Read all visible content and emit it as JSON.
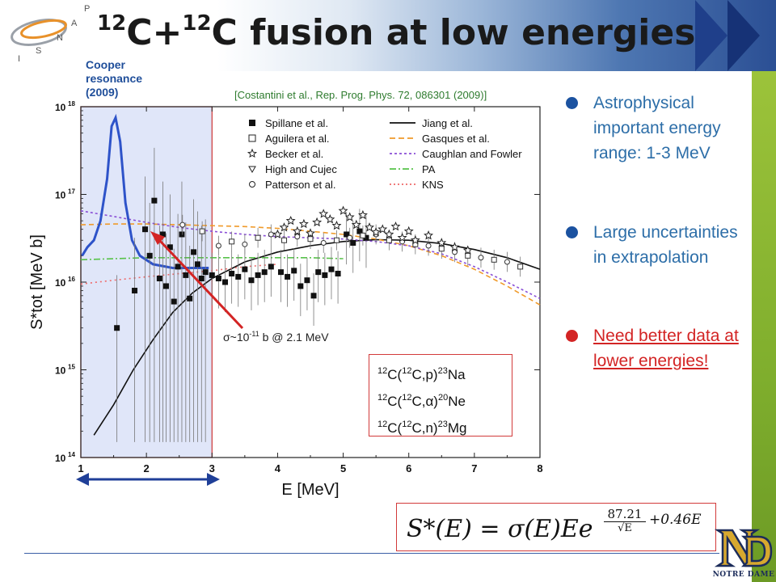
{
  "slide": {
    "title_parts": [
      "12",
      "C+",
      "12",
      "C fusion at low energies"
    ],
    "cooper_label": "Cooper resonance (2009)",
    "citation": "[Costantini et al., Rep. Prog. Phys. 72, 086301 (2009)]",
    "sigma_note": {
      "base": "σ~10",
      "exp": "-11",
      "rest": " b @ 2.1 MeV"
    },
    "isnap_letters": [
      "I",
      "S",
      "N",
      "A",
      "P"
    ],
    "nd_caption": "NOTRE DAME",
    "colors": {
      "banner_dark": "#1f3f8a",
      "accent_green": "#9cc33a",
      "bullet_blue": "#2d6ea8",
      "highlight_red": "#d32424"
    }
  },
  "bullets": [
    {
      "text": "Astrophysical important energy range: 1-3 MeV"
    },
    {
      "text": "Large uncertainties in extrapolation"
    },
    {
      "text": "Need better data at lower energies!"
    }
  ],
  "reactions": [
    {
      "a": "12",
      "b": "C(",
      "c": "12",
      "d": "C,p)",
      "e": "23",
      "f": "Na"
    },
    {
      "a": "12",
      "b": "C(",
      "c": "12",
      "d": "C,α)",
      "e": "20",
      "f": "Ne"
    },
    {
      "a": "12",
      "b": "C(",
      "c": "12",
      "d": "C,n)",
      "e": "23",
      "f": "Mg"
    }
  ],
  "formula": {
    "lhs": "S*(E) = σ(E)Ee",
    "frac_num": "87.21",
    "frac_den": "√E",
    "tail": "+0.46E"
  },
  "chart_data": {
    "type": "scatter",
    "xlabel": "E [MeV]",
    "ylabel": "S*tot [MeV b]",
    "xlim": [
      1,
      8
    ],
    "ylim": [
      100000000000000.0,
      1e+18
    ],
    "log_y": true,
    "x_ticks": [
      "1",
      "2",
      "3",
      "4",
      "5",
      "6",
      "7",
      "8"
    ],
    "y_ticks": [
      {
        "v": 1e+18,
        "label": "10",
        "exp": "18"
      },
      {
        "v": 1e+17,
        "label": "10",
        "exp": "17"
      },
      {
        "v": 1e+16,
        "label": "10",
        "exp": "16"
      },
      {
        "v": 1000000000000000.0,
        "label": "10",
        "exp": "15"
      },
      {
        "v": 100000000000000.0,
        "label": "10",
        "exp": "14"
      }
    ],
    "highlight_range": [
      1,
      3
    ],
    "legend_left": [
      {
        "name": "Spillane et al.",
        "marker": "filled-square"
      },
      {
        "name": "Aguilera et al.",
        "marker": "open-square"
      },
      {
        "name": "Becker et al.",
        "marker": "star"
      },
      {
        "name": "High and Cujec",
        "marker": "triangle-down"
      },
      {
        "name": "Patterson et al.",
        "marker": "circle"
      }
    ],
    "legend_right": [
      {
        "name": "Jiang et al.",
        "color": "#111111",
        "dash": "solid"
      },
      {
        "name": "Gasques et al.",
        "color": "#f09a2a",
        "dash": "dash"
      },
      {
        "name": "Caughlan and Fowler",
        "color": "#8a4fd6",
        "dash": "dash-short"
      },
      {
        "name": "PA",
        "color": "#58c24a",
        "dash": "dashdot"
      },
      {
        "name": "KNS",
        "color": "#ee6a6a",
        "dash": "dot"
      }
    ],
    "curves": [
      {
        "name": "Jiang et al.",
        "color": "#111111",
        "dash": "",
        "points": [
          [
            1.2,
            180000000000000.0
          ],
          [
            1.5,
            400000000000000.0
          ],
          [
            1.8,
            1000000000000000.0
          ],
          [
            2.1,
            2200000000000000.0
          ],
          [
            2.4,
            4500000000000000.0
          ],
          [
            2.7,
            7500000000000000.0
          ],
          [
            3.0,
            1.1e+16
          ],
          [
            3.5,
            1.7e+16
          ],
          [
            4.0,
            2.2e+16
          ],
          [
            4.5,
            2.6e+16
          ],
          [
            5.0,
            2.9e+16
          ],
          [
            5.5,
            3.05e+16
          ],
          [
            6.0,
            3e+16
          ],
          [
            6.5,
            2.75e+16
          ],
          [
            7.0,
            2.35e+16
          ],
          [
            7.5,
            1.9e+16
          ],
          [
            8.0,
            1.4e+16
          ]
        ]
      },
      {
        "name": "Gasques et al.",
        "color": "#f09a2a",
        "dash": "6,4",
        "points": [
          [
            1.0,
            4.5e+16
          ],
          [
            1.5,
            4.6e+16
          ],
          [
            2.0,
            4.6e+16
          ],
          [
            2.5,
            4.5e+16
          ],
          [
            3.0,
            4.4e+16
          ],
          [
            3.5,
            4.3e+16
          ],
          [
            4.0,
            4.1e+16
          ],
          [
            4.5,
            3.8e+16
          ],
          [
            5.0,
            3.5e+16
          ],
          [
            5.5,
            3.1e+16
          ],
          [
            6.0,
            2.6e+16
          ],
          [
            6.5,
            2e+16
          ],
          [
            7.0,
            1.4e+16
          ],
          [
            7.5,
            9000000000000000.0
          ],
          [
            8.0,
            5500000000000000.0
          ]
        ]
      },
      {
        "name": "Caughlan and Fowler",
        "color": "#8a4fd6",
        "dash": "3,3",
        "points": [
          [
            1.0,
            6.5e+16
          ],
          [
            1.5,
            5.6e+16
          ],
          [
            2.0,
            4.8e+16
          ],
          [
            2.5,
            4.2e+16
          ],
          [
            3.0,
            3.8e+16
          ],
          [
            3.5,
            3.5e+16
          ],
          [
            4.0,
            3.3e+16
          ],
          [
            4.5,
            3.2e+16
          ],
          [
            5.0,
            3.1e+16
          ],
          [
            5.5,
            2.9e+16
          ],
          [
            6.0,
            2.6e+16
          ],
          [
            6.5,
            2.1e+16
          ],
          [
            7.0,
            1.5e+16
          ],
          [
            7.5,
            1e+16
          ],
          [
            8.0,
            6500000000000000.0
          ]
        ]
      },
      {
        "name": "PA",
        "color": "#58c24a",
        "dash": "8,3,2,3",
        "points": [
          [
            1.0,
            1.8e+16
          ],
          [
            1.5,
            1.85e+16
          ],
          [
            2.0,
            1.9e+16
          ],
          [
            2.5,
            1.9e+16
          ],
          [
            3.0,
            1.9e+16
          ],
          [
            3.5,
            1.9e+16
          ],
          [
            4.0,
            1.9e+16
          ],
          [
            4.5,
            1.9e+16
          ],
          [
            5.0,
            1.85e+16
          ]
        ]
      },
      {
        "name": "KNS",
        "color": "#ee6a6a",
        "dash": "2,4",
        "points": [
          [
            1.0,
            9500000000000000.0
          ],
          [
            1.5,
            1.05e+16
          ],
          [
            2.0,
            1.15e+16
          ],
          [
            2.5,
            1.25e+16
          ],
          [
            3.0,
            1.35e+16
          ],
          [
            3.5,
            1.5e+16
          ],
          [
            4.0,
            1.6e+16
          ]
        ]
      },
      {
        "name": "Cooper resonance",
        "color": "#2e53c9",
        "dash": "",
        "width": 3,
        "points": [
          [
            1.02,
            2e+16
          ],
          [
            1.1,
            2.5e+16
          ],
          [
            1.2,
            3e+16
          ],
          [
            1.3,
            5e+16
          ],
          [
            1.4,
            1.5e+17
          ],
          [
            1.47,
            6e+17
          ],
          [
            1.53,
            7.5e+17
          ],
          [
            1.6,
            4e+17
          ],
          [
            1.68,
            8e+16
          ],
          [
            1.78,
            3e+16
          ],
          [
            1.9,
            2e+16
          ],
          [
            2.1,
            1.6e+16
          ],
          [
            2.4,
            1.45e+16
          ],
          [
            2.7,
            1.45e+16
          ],
          [
            2.95,
            1.45e+16
          ]
        ]
      }
    ],
    "spillane": [
      [
        1.55,
        3000000000000000.0
      ],
      [
        1.82,
        8000000000000000.0
      ],
      [
        1.98,
        4e+16
      ],
      [
        2.05,
        2e+16
      ],
      [
        2.12,
        8.5e+16
      ],
      [
        2.2,
        1.1e+16
      ],
      [
        2.25,
        3.5e+16
      ],
      [
        2.3,
        9000000000000000.0
      ],
      [
        2.36,
        2.5e+16
      ],
      [
        2.42,
        6000000000000000.0
      ],
      [
        2.48,
        1.5e+16
      ],
      [
        2.54,
        3.5e+16
      ],
      [
        2.6,
        1.2e+16
      ],
      [
        2.66,
        6500000000000000.0
      ],
      [
        2.72,
        2.2e+16
      ],
      [
        2.78,
        1.6e+16
      ],
      [
        2.84,
        1.1e+16
      ],
      [
        2.9,
        1.3e+16
      ],
      [
        3.0,
        1.2e+16
      ],
      [
        3.1,
        1.1e+16
      ],
      [
        3.2,
        1e+16
      ],
      [
        3.3,
        1.25e+16
      ],
      [
        3.4,
        1.15e+16
      ],
      [
        3.5,
        1.4e+16
      ],
      [
        3.6,
        1.05e+16
      ],
      [
        3.7,
        1.2e+16
      ],
      [
        3.8,
        1.3e+16
      ],
      [
        3.9,
        1.5e+16
      ],
      [
        4.05,
        1.3e+16
      ],
      [
        4.15,
        1.15e+16
      ],
      [
        4.25,
        1.35e+16
      ],
      [
        4.35,
        9000000000000000.0
      ],
      [
        4.45,
        1.05e+16
      ],
      [
        4.55,
        7000000000000000.0
      ],
      [
        4.62,
        1.3e+16
      ],
      [
        4.72,
        1.2e+16
      ],
      [
        4.82,
        1.4e+16
      ],
      [
        4.92,
        1.25e+16
      ],
      [
        5.05,
        3.5e+16
      ],
      [
        5.15,
        2.8e+16
      ],
      [
        5.25,
        3.8e+16
      ],
      [
        5.35,
        3.2e+16
      ]
    ],
    "open_points": [
      [
        2.55,
        4.5e+16
      ],
      [
        2.85,
        3.8e+16
      ],
      [
        3.1,
        2.6e+16
      ],
      [
        3.3,
        2.9e+16
      ],
      [
        3.5,
        2.7e+16
      ],
      [
        3.7,
        3.2e+16
      ],
      [
        3.9,
        3.5e+16
      ],
      [
        4.1,
        3e+16
      ],
      [
        4.3,
        3.3e+16
      ],
      [
        4.5,
        3.1e+16
      ],
      [
        4.7,
        2.8e+16
      ],
      [
        4.9,
        3e+16
      ],
      [
        5.1,
        3.2e+16
      ],
      [
        5.3,
        3.4e+16
      ],
      [
        5.5,
        3.5e+16
      ],
      [
        5.7,
        3e+16
      ],
      [
        5.9,
        2.9e+16
      ],
      [
        6.1,
        2.7e+16
      ],
      [
        6.3,
        2.6e+16
      ],
      [
        6.5,
        2.4e+16
      ],
      [
        6.7,
        2.2e+16
      ],
      [
        6.9,
        2e+16
      ],
      [
        7.1,
        1.9e+16
      ],
      [
        7.3,
        1.8e+16
      ],
      [
        7.5,
        1.7e+16
      ],
      [
        7.7,
        1.5e+16
      ]
    ],
    "stars": [
      [
        4.0,
        3.5e+16
      ],
      [
        4.1,
        4.2e+16
      ],
      [
        4.2,
        5e+16
      ],
      [
        4.3,
        3.8e+16
      ],
      [
        4.4,
        4.6e+16
      ],
      [
        4.5,
        3.6e+16
      ],
      [
        4.6,
        4.8e+16
      ],
      [
        4.7,
        6e+16
      ],
      [
        4.8,
        5.2e+16
      ],
      [
        4.9,
        4.4e+16
      ],
      [
        5.0,
        6.5e+16
      ],
      [
        5.1,
        5.5e+16
      ],
      [
        5.2,
        4.5e+16
      ],
      [
        5.3,
        5.8e+16
      ],
      [
        5.4,
        4.2e+16
      ],
      [
        5.5,
        3.7e+16
      ],
      [
        5.6,
        4e+16
      ],
      [
        5.7,
        3.5e+16
      ],
      [
        5.8,
        4.3e+16
      ],
      [
        5.9,
        3.2e+16
      ],
      [
        6.0,
        3.8e+16
      ],
      [
        6.1,
        3e+16
      ],
      [
        6.3,
        3.4e+16
      ],
      [
        6.5,
        2.8e+16
      ],
      [
        6.7,
        2.5e+16
      ],
      [
        6.9,
        2.3e+16
      ]
    ]
  }
}
